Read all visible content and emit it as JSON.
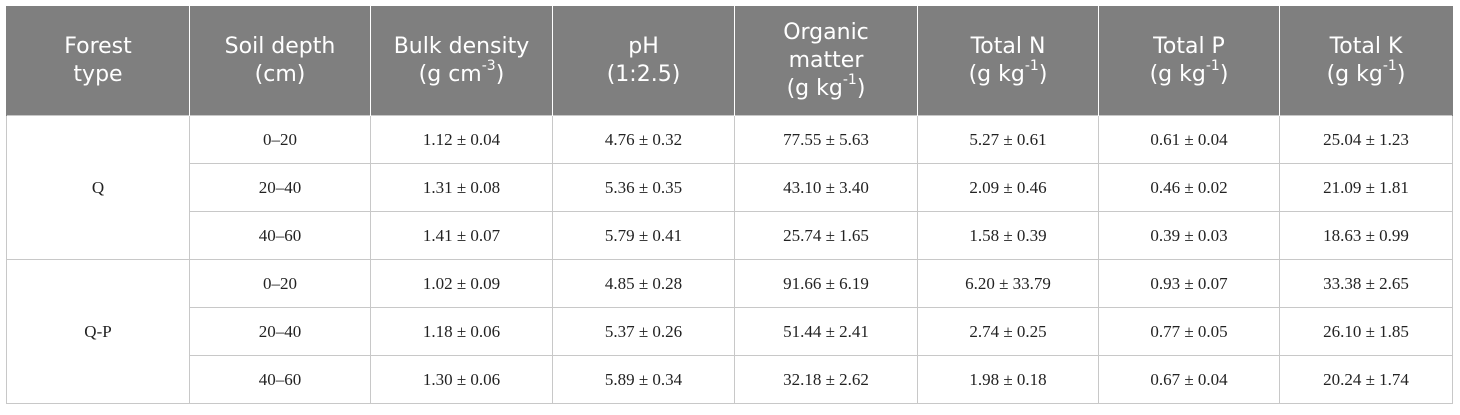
{
  "table": {
    "headers": [
      {
        "lines": [
          "Forest",
          "type"
        ]
      },
      {
        "lines": [
          "Soil depth",
          "(cm)"
        ]
      },
      {
        "lines": [
          "Bulk density",
          "(g cm"
        ],
        "sup": "-3",
        "after": ")"
      },
      {
        "lines": [
          "pH",
          "(1:2.5)"
        ]
      },
      {
        "lines": [
          "Organic",
          "matter",
          "(g kg"
        ],
        "sup": "-1",
        "after": ")"
      },
      {
        "lines": [
          "Total N",
          "(g kg"
        ],
        "sup": "-1",
        "after": ")"
      },
      {
        "lines": [
          "Total P",
          "(g kg"
        ],
        "sup": "-1",
        "after": ")"
      },
      {
        "lines": [
          "Total K",
          "(g kg"
        ],
        "sup": "-1",
        "after": ")"
      }
    ],
    "groups": [
      {
        "forest_type": "Q",
        "rows": [
          [
            "0–20",
            "1.12 ± 0.04",
            "4.76 ± 0.32",
            "77.55 ± 5.63",
            "5.27 ± 0.61",
            "0.61 ± 0.04",
            "25.04 ± 1.23"
          ],
          [
            "20–40",
            "1.31 ± 0.08",
            "5.36 ± 0.35",
            "43.10 ± 3.40",
            "2.09 ± 0.46",
            "0.46 ± 0.02",
            "21.09 ± 1.81"
          ],
          [
            "40–60",
            "1.41 ± 0.07",
            "5.79 ± 0.41",
            "25.74 ± 1.65",
            "1.58 ± 0.39",
            "0.39 ± 0.03",
            "18.63 ± 0.99"
          ]
        ]
      },
      {
        "forest_type": "Q-P",
        "rows": [
          [
            "0–20",
            "1.02 ± 0.09",
            "4.85 ± 0.28",
            "91.66 ± 6.19",
            "6.20 ± 33.79",
            "0.93 ± 0.07",
            "33.38 ± 2.65"
          ],
          [
            "20–40",
            "1.18 ± 0.06",
            "5.37 ± 0.26",
            "51.44 ± 2.41",
            "2.74 ± 0.25",
            "0.77 ± 0.05",
            "26.10 ± 1.85"
          ],
          [
            "40–60",
            "1.30 ± 0.06",
            "5.89 ± 0.34",
            "32.18 ± 2.62",
            "1.98 ± 0.18",
            "0.67 ± 0.04",
            "20.24 ± 1.74"
          ]
        ]
      }
    ]
  }
}
